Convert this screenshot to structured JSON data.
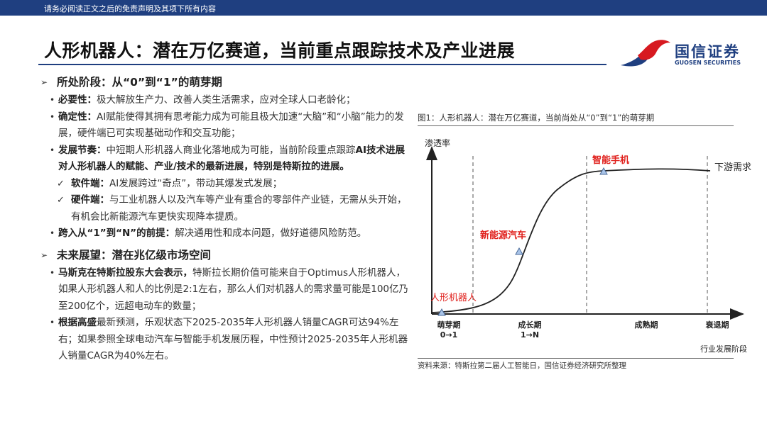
{
  "header": {
    "disclaimer": "请务必阅读正文之后的免责声明及其项下所有内容",
    "title": "人形机器人：潜在万亿赛道，当前重点跟踪技术及产业进展",
    "logo_cn": "国信证券",
    "logo_en": "GUOSEN SECURITIES"
  },
  "colors": {
    "navy": "#1f3f80",
    "red": "#d71920",
    "label_red": "#e0201c",
    "triangle": "#a9c4e8"
  },
  "section1": {
    "heading": "所处阶段：从“0”到“1”的萌芽期",
    "items": [
      {
        "bold": "必要性：",
        "text": "极大解放生产力、改善人类生活需求，应对全球人口老龄化；"
      },
      {
        "bold": "确定性：",
        "text": "AI赋能使得其拥有思考能力成为可能且极大加速“大脑”和“小脑”能力的发展，硬件端已可实现基础动作和交互功能；"
      },
      {
        "bold": "发展节奏：",
        "text": "中短期人形机器人商业化落地成为可能，当前阶段重点跟踪",
        "bold2": "AI技术进展对人形机器人的赋能、产业/技术的最新进展，特别是特斯拉的进展。"
      }
    ],
    "subitems": [
      {
        "bold": "软件端：",
        "text": "AI发展跨过“奇点”，带动其爆发式发展；"
      },
      {
        "bold": "硬件端：",
        "text": "与工业机器人以及汽车等产业有重合的零部件产业链，无需从头开始，有机会比新能源汽车更快实现降本提质。"
      }
    ],
    "last": {
      "bold": "跨入从“1”到“N”的前提：",
      "text": "解决通用性和成本问题，做好道德风险防范。"
    }
  },
  "section2": {
    "heading": "未来展望：潜在兆亿级市场空间",
    "items": [
      {
        "bold": "马斯克在特斯拉股东大会表示，",
        "text": "特斯拉长期价值可能来自于Optimus人形机器人，如果人形机器人和人的比例是2:1左右，那么人们对机器人的需求量可能是100亿乃至200亿个，远超电动车的数量；"
      },
      {
        "bold": "根据高盛",
        "text": "最新预测，乐观状态下2025-2035年人形机器人销量CAGR可达94%左右；如果参照全球电动汽车与智能手机发展历程，中性预计2025-2035年人形机器人销量CAGR为40%左右。"
      }
    ]
  },
  "figure": {
    "caption": "图1：人形机器人：潜在万亿赛道，当前尚处从“0”到“1”的萌芽期",
    "source": "资料来源：特斯拉第二届人工智能日，国信证券经济研究所整理",
    "chart_data": {
      "type": "line",
      "ylabel": "渗透率",
      "xlabel": "行业发展阶段",
      "stages": [
        {
          "name": "萌芽期",
          "sub": "0→1"
        },
        {
          "name": "成长期",
          "sub": "1→N"
        },
        {
          "name": "成熟期",
          "sub": ""
        },
        {
          "name": "衰退期",
          "sub": ""
        }
      ],
      "annotations": [
        {
          "label": "人形机器人",
          "color": "red"
        },
        {
          "label": "新能源汽车",
          "color": "red"
        },
        {
          "label": "智能手机",
          "color": "red"
        },
        {
          "label": "下游需求",
          "color": "black"
        }
      ],
      "grid": false
    }
  }
}
